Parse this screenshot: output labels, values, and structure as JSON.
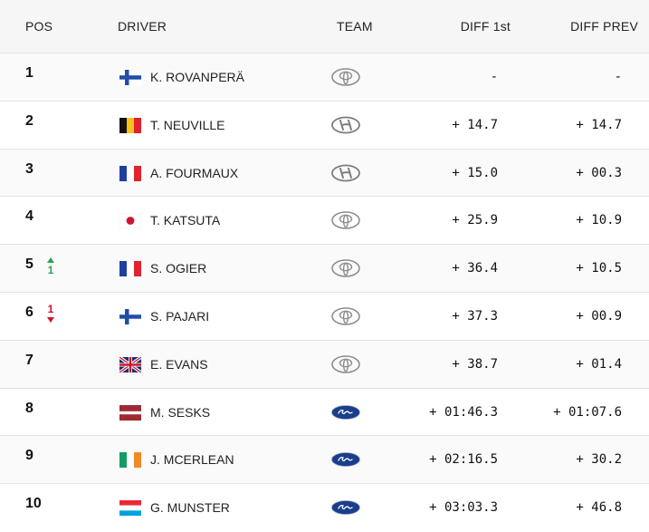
{
  "headers": {
    "pos": "POS",
    "driver": "DRIVER",
    "team": "TEAM",
    "diff_first": "DIFF 1st",
    "diff_prev": "DIFF PREV"
  },
  "rows": [
    {
      "pos": "1",
      "driver": "K. ROVANPERÄ",
      "flag": "finland",
      "team": "toyota-logo",
      "diff_first": "-",
      "diff_prev": "-"
    },
    {
      "pos": "2",
      "driver": "T. NEUVILLE",
      "flag": "belgium",
      "team": "hyundai-logo",
      "diff_first": "+ 14.7",
      "diff_prev": "+ 14.7"
    },
    {
      "pos": "3",
      "driver": "A. FOURMAUX",
      "flag": "france",
      "team": "hyundai-logo",
      "diff_first": "+ 15.0",
      "diff_prev": "+ 00.3"
    },
    {
      "pos": "4",
      "driver": "T. KATSUTA",
      "flag": "japan",
      "team": "toyota-logo",
      "diff_first": "+ 25.9",
      "diff_prev": "+ 10.9"
    },
    {
      "pos": "5",
      "change": "1",
      "change_dir": "up",
      "driver": "S. OGIER",
      "flag": "france",
      "team": "toyota-logo",
      "diff_first": "+ 36.4",
      "diff_prev": "+ 10.5"
    },
    {
      "pos": "6",
      "change": "1",
      "change_dir": "down",
      "driver": "S. PAJARI",
      "flag": "finland",
      "team": "toyota-logo",
      "diff_first": "+ 37.3",
      "diff_prev": "+ 00.9"
    },
    {
      "pos": "7",
      "driver": "E. EVANS",
      "flag": "uk",
      "team": "toyota-logo",
      "diff_first": "+ 38.7",
      "diff_prev": "+ 01.4"
    },
    {
      "pos": "8",
      "driver": "M. SESKS",
      "flag": "latvia",
      "team": "ford-logo",
      "diff_first": "+ 01:46.3",
      "diff_prev": "+ 01:07.6"
    },
    {
      "pos": "9",
      "driver": "J. MCERLEAN",
      "flag": "ireland",
      "team": "ford-logo",
      "diff_first": "+ 02:16.5",
      "diff_prev": "+ 30.2"
    },
    {
      "pos": "10",
      "driver": "G. MUNSTER",
      "flag": "luxembourg",
      "team": "ford-logo",
      "diff_first": "+ 03:03.3",
      "diff_prev": "+ 46.8"
    }
  ],
  "colors": {
    "up": "#2ea44f",
    "down": "#d0112b",
    "ford": "#1b3e8a"
  }
}
